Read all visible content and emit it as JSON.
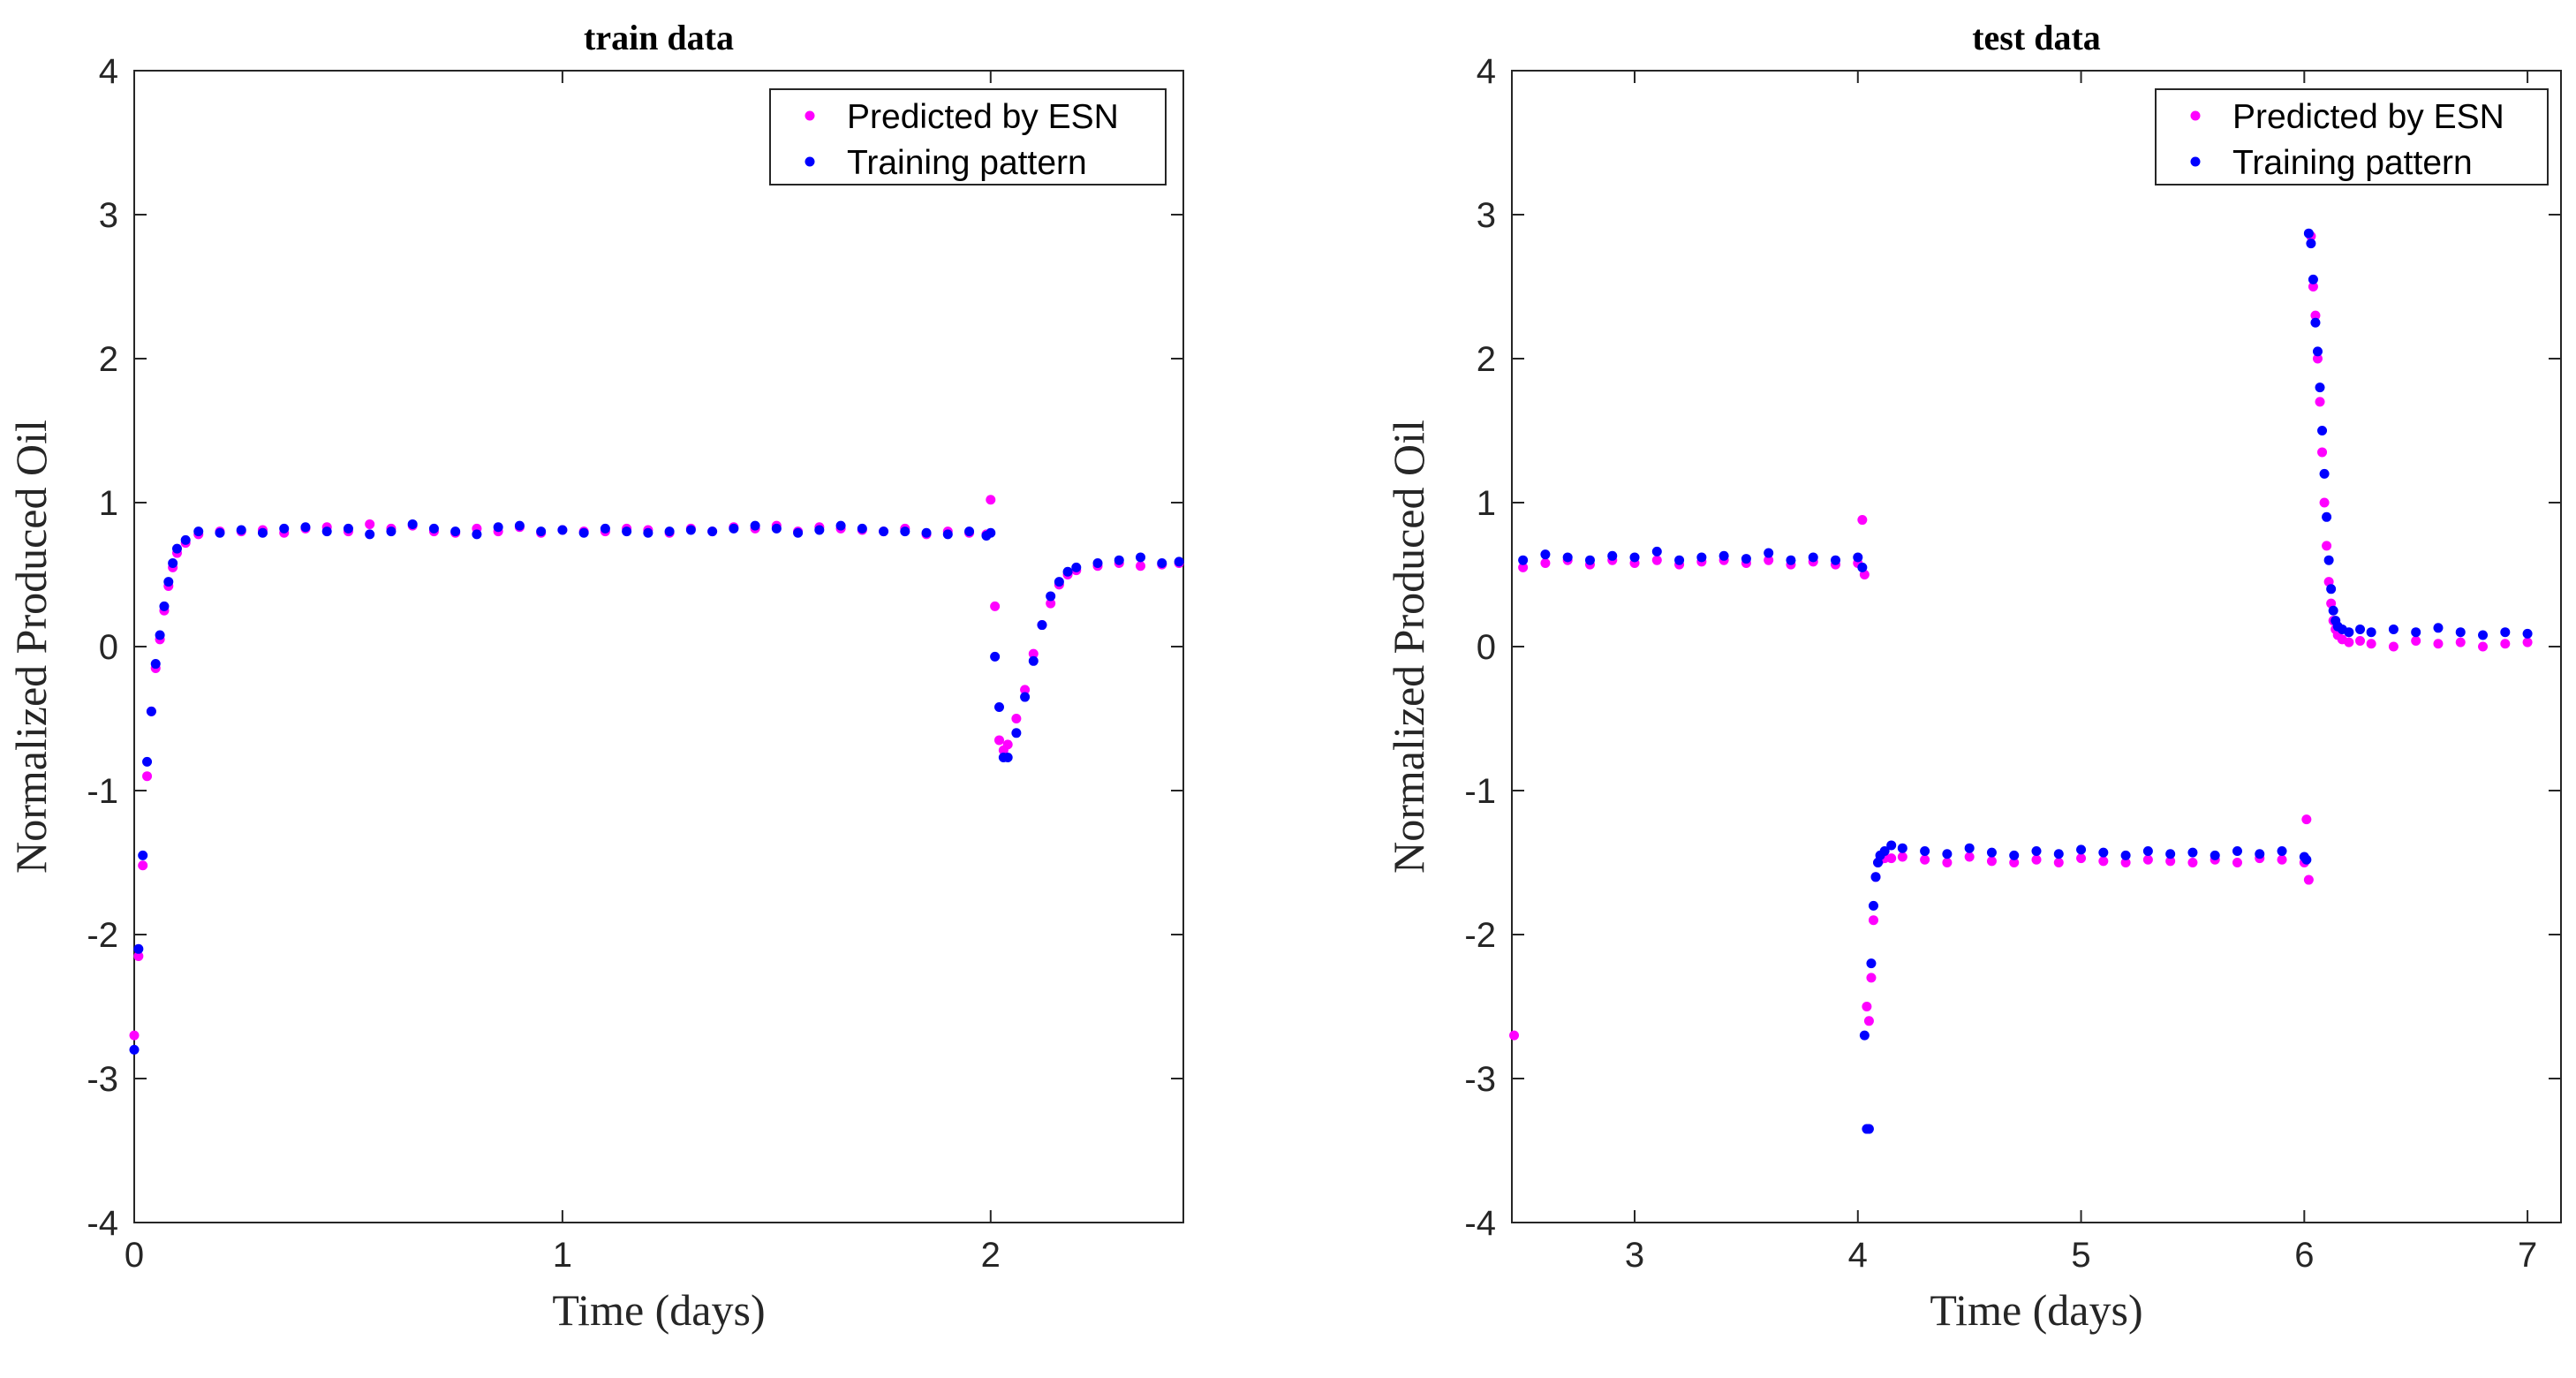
{
  "chart_data": [
    {
      "type": "scatter",
      "title": "train data",
      "xlabel": "Time (days)",
      "ylabel": "Normalized Produced Oil",
      "xlim": [
        0,
        2.45
      ],
      "ylim": [
        -4,
        4
      ],
      "xticks": [
        0,
        1,
        2
      ],
      "yticks": [
        -4,
        -3,
        -2,
        -1,
        0,
        1,
        2,
        3,
        4
      ],
      "legend": {
        "position": "top-right",
        "entries": [
          "Predicted by ESN",
          "Training pattern"
        ]
      },
      "series": [
        {
          "name": "Predicted by ESN",
          "color": "#ff00ff",
          "x": [
            0.0,
            0.01,
            0.02,
            0.03,
            0.04,
            0.05,
            0.06,
            0.07,
            0.08,
            0.09,
            0.1,
            0.12,
            0.15,
            0.2,
            0.25,
            0.3,
            0.35,
            0.4,
            0.45,
            0.5,
            0.55,
            0.6,
            0.65,
            0.7,
            0.75,
            0.8,
            0.85,
            0.9,
            0.95,
            1.0,
            1.05,
            1.1,
            1.15,
            1.2,
            1.25,
            1.3,
            1.35,
            1.4,
            1.45,
            1.5,
            1.55,
            1.6,
            1.65,
            1.7,
            1.75,
            1.8,
            1.85,
            1.9,
            1.95,
            1.99,
            2.0,
            2.01,
            2.02,
            2.03,
            2.04,
            2.06,
            2.08,
            2.1,
            2.12,
            2.14,
            2.16,
            2.18,
            2.2,
            2.25,
            2.3,
            2.35,
            2.4,
            2.44
          ],
          "y": [
            -2.7,
            -2.15,
            -1.52,
            -0.9,
            -0.45,
            -0.15,
            0.05,
            0.25,
            0.42,
            0.55,
            0.65,
            0.72,
            0.78,
            0.8,
            0.8,
            0.81,
            0.79,
            0.82,
            0.83,
            0.8,
            0.85,
            0.82,
            0.84,
            0.8,
            0.79,
            0.82,
            0.8,
            0.83,
            0.79,
            0.81,
            0.8,
            0.8,
            0.82,
            0.81,
            0.79,
            0.82,
            0.8,
            0.83,
            0.82,
            0.84,
            0.8,
            0.83,
            0.82,
            0.81,
            0.8,
            0.82,
            0.78,
            0.8,
            0.79,
            0.78,
            1.02,
            0.28,
            -0.65,
            -0.72,
            -0.68,
            -0.5,
            -0.3,
            -0.05,
            0.15,
            0.3,
            0.43,
            0.5,
            0.53,
            0.56,
            0.58,
            0.56,
            0.57,
            0.58
          ]
        },
        {
          "name": "Training pattern",
          "color": "#0000ff",
          "x": [
            0.0,
            0.01,
            0.02,
            0.03,
            0.04,
            0.05,
            0.06,
            0.07,
            0.08,
            0.09,
            0.1,
            0.12,
            0.15,
            0.2,
            0.25,
            0.3,
            0.35,
            0.4,
            0.45,
            0.5,
            0.55,
            0.6,
            0.65,
            0.7,
            0.75,
            0.8,
            0.85,
            0.9,
            0.95,
            1.0,
            1.05,
            1.1,
            1.15,
            1.2,
            1.25,
            1.3,
            1.35,
            1.4,
            1.45,
            1.5,
            1.55,
            1.6,
            1.65,
            1.7,
            1.75,
            1.8,
            1.85,
            1.9,
            1.95,
            1.99,
            2.0,
            2.01,
            2.02,
            2.03,
            2.04,
            2.06,
            2.08,
            2.1,
            2.12,
            2.14,
            2.16,
            2.18,
            2.2,
            2.25,
            2.3,
            2.35,
            2.4,
            2.44
          ],
          "y": [
            -2.8,
            -2.1,
            -1.45,
            -0.8,
            -0.45,
            -0.12,
            0.08,
            0.28,
            0.45,
            0.58,
            0.68,
            0.74,
            0.8,
            0.79,
            0.81,
            0.79,
            0.82,
            0.83,
            0.8,
            0.82,
            0.78,
            0.8,
            0.85,
            0.82,
            0.8,
            0.78,
            0.83,
            0.84,
            0.8,
            0.81,
            0.79,
            0.82,
            0.8,
            0.79,
            0.8,
            0.81,
            0.8,
            0.82,
            0.84,
            0.82,
            0.79,
            0.81,
            0.84,
            0.82,
            0.8,
            0.8,
            0.79,
            0.78,
            0.8,
            0.77,
            0.79,
            -0.07,
            -0.42,
            -0.77,
            -0.77,
            -0.6,
            -0.35,
            -0.1,
            0.15,
            0.35,
            0.45,
            0.52,
            0.55,
            0.58,
            0.6,
            0.62,
            0.58,
            0.59
          ]
        }
      ]
    },
    {
      "type": "scatter",
      "title": "test data",
      "xlabel": "Time (days)",
      "ylabel": "Normalized Produced Oil",
      "xlim": [
        2.45,
        7.15
      ],
      "ylim": [
        -4,
        4
      ],
      "xticks": [
        3,
        4,
        5,
        6,
        7
      ],
      "yticks": [
        -4,
        -3,
        -2,
        -1,
        0,
        1,
        2,
        3,
        4
      ],
      "legend": {
        "position": "top-right",
        "entries": [
          "Predicted by ESN",
          "Training pattern"
        ]
      },
      "series": [
        {
          "name": "Predicted by ESN",
          "color": "#ff00ff",
          "x": [
            2.46,
            2.5,
            2.6,
            2.7,
            2.8,
            2.9,
            3.0,
            3.1,
            3.2,
            3.3,
            3.4,
            3.5,
            3.6,
            3.7,
            3.8,
            3.9,
            4.0,
            4.02,
            4.03,
            4.04,
            4.05,
            4.06,
            4.07,
            4.08,
            4.09,
            4.1,
            4.12,
            4.15,
            4.2,
            4.3,
            4.4,
            4.5,
            4.6,
            4.7,
            4.8,
            4.9,
            5.0,
            5.1,
            5.2,
            5.3,
            5.4,
            5.5,
            5.6,
            5.7,
            5.8,
            5.9,
            6.0,
            6.01,
            6.02,
            6.03,
            6.04,
            6.05,
            6.06,
            6.07,
            6.08,
            6.09,
            6.1,
            6.11,
            6.12,
            6.13,
            6.14,
            6.15,
            6.17,
            6.2,
            6.25,
            6.3,
            6.4,
            6.5,
            6.6,
            6.7,
            6.8,
            6.9,
            7.0
          ],
          "y": [
            -2.7,
            0.55,
            0.58,
            0.6,
            0.57,
            0.6,
            0.58,
            0.6,
            0.57,
            0.59,
            0.6,
            0.58,
            0.6,
            0.57,
            0.59,
            0.57,
            0.58,
            0.88,
            0.5,
            -2.5,
            -2.6,
            -2.3,
            -1.9,
            -1.6,
            -1.5,
            -1.48,
            -1.47,
            -1.47,
            -1.46,
            -1.48,
            -1.5,
            -1.46,
            -1.49,
            -1.5,
            -1.48,
            -1.5,
            -1.47,
            -1.49,
            -1.5,
            -1.48,
            -1.49,
            -1.5,
            -1.48,
            -1.5,
            -1.47,
            -1.48,
            -1.5,
            -1.2,
            -1.62,
            2.85,
            2.5,
            2.3,
            2.0,
            1.7,
            1.35,
            1.0,
            0.7,
            0.45,
            0.3,
            0.18,
            0.12,
            0.08,
            0.05,
            0.03,
            0.04,
            0.02,
            0.0,
            0.04,
            0.02,
            0.03,
            0.0,
            0.02,
            0.03
          ]
        },
        {
          "name": "Training pattern",
          "color": "#0000ff",
          "x": [
            2.5,
            2.6,
            2.7,
            2.8,
            2.9,
            3.0,
            3.1,
            3.2,
            3.3,
            3.4,
            3.5,
            3.6,
            3.7,
            3.8,
            3.9,
            4.0,
            4.02,
            4.03,
            4.04,
            4.05,
            4.06,
            4.07,
            4.08,
            4.09,
            4.1,
            4.12,
            4.15,
            4.2,
            4.3,
            4.4,
            4.5,
            4.6,
            4.7,
            4.8,
            4.9,
            5.0,
            5.1,
            5.2,
            5.3,
            5.4,
            5.5,
            5.6,
            5.7,
            5.8,
            5.9,
            6.0,
            6.01,
            6.02,
            6.03,
            6.04,
            6.05,
            6.06,
            6.07,
            6.08,
            6.09,
            6.1,
            6.11,
            6.12,
            6.13,
            6.14,
            6.15,
            6.17,
            6.2,
            6.25,
            6.3,
            6.4,
            6.5,
            6.6,
            6.7,
            6.8,
            6.9,
            7.0
          ],
          "y": [
            0.6,
            0.64,
            0.62,
            0.6,
            0.63,
            0.62,
            0.66,
            0.6,
            0.62,
            0.63,
            0.61,
            0.65,
            0.6,
            0.62,
            0.6,
            0.62,
            0.55,
            -2.7,
            -3.35,
            -3.35,
            -2.2,
            -1.8,
            -1.6,
            -1.5,
            -1.45,
            -1.42,
            -1.38,
            -1.4,
            -1.42,
            -1.44,
            -1.4,
            -1.43,
            -1.45,
            -1.42,
            -1.44,
            -1.41,
            -1.43,
            -1.45,
            -1.42,
            -1.44,
            -1.43,
            -1.45,
            -1.42,
            -1.44,
            -1.42,
            -1.46,
            -1.48,
            2.87,
            2.8,
            2.55,
            2.25,
            2.05,
            1.8,
            1.5,
            1.2,
            0.9,
            0.6,
            0.4,
            0.25,
            0.18,
            0.14,
            0.12,
            0.1,
            0.12,
            0.1,
            0.12,
            0.1,
            0.13,
            0.1,
            0.08,
            0.1,
            0.09
          ]
        }
      ]
    }
  ]
}
